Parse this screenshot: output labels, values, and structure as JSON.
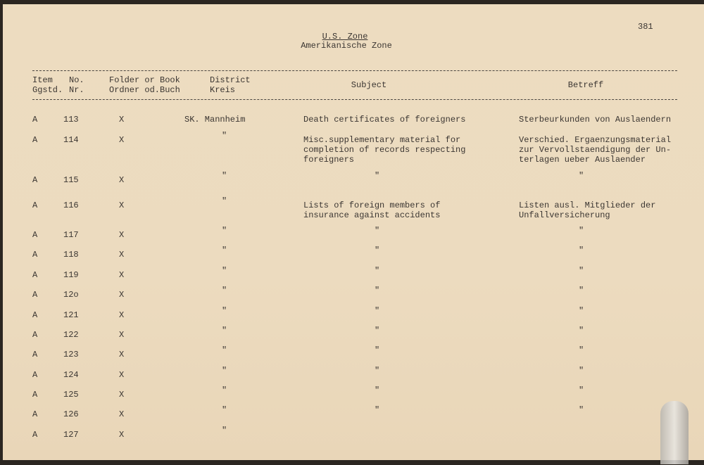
{
  "page_number": "381",
  "heading": {
    "line1": "U.S. Zone",
    "line2": "Amerikanische Zone"
  },
  "columns": {
    "item": [
      "Item",
      "Ggstd."
    ],
    "no": [
      "No.",
      "Nr."
    ],
    "folder": [
      "Folder or Book",
      "Ordner od.Buch"
    ],
    "district": [
      "District",
      "Kreis"
    ],
    "subject": "Subject",
    "betreff": "Betreff"
  },
  "rows": [
    {
      "item": "A",
      "no": "113",
      "folder": "X",
      "district": "SK. Mannheim",
      "subject": "Death certificates of foreigners",
      "betreff": "Sterbeurkunden von Auslaendern"
    },
    {
      "item": "A",
      "no": "114",
      "folder": "X",
      "district": "\"",
      "subject": "Misc.supplementary material for\ncompletion of records respecting\nforeigners",
      "betreff": "Verschied. Ergaenzungsmaterial\nzur Vervollstaendigung der Un-\nterlagen ueber Auslaender"
    },
    {
      "item": "A",
      "no": "115",
      "folder": "X",
      "district": "\"",
      "subject": "\"",
      "betreff": "\""
    },
    {
      "item": "A",
      "no": "116",
      "folder": "X",
      "district": "\"",
      "subject": "Lists of foreign members of\ninsurance against accidents",
      "betreff": "Listen ausl. Mitglieder der\nUnfallversicherung"
    },
    {
      "item": "A",
      "no": "117",
      "folder": "X",
      "district": "\"",
      "subject": "\"",
      "betreff": "\""
    },
    {
      "item": "A",
      "no": "118",
      "folder": "X",
      "district": "\"",
      "subject": "\"",
      "betreff": "\""
    },
    {
      "item": "A",
      "no": "119",
      "folder": "X",
      "district": "\"",
      "subject": "\"",
      "betreff": "\""
    },
    {
      "item": "A",
      "no": "12o",
      "folder": "X",
      "district": "\"",
      "subject": "\"",
      "betreff": "\""
    },
    {
      "item": "A",
      "no": "121",
      "folder": "X",
      "district": "\"",
      "subject": "\"",
      "betreff": "\""
    },
    {
      "item": "A",
      "no": "122",
      "folder": "X",
      "district": "\"",
      "subject": "\"",
      "betreff": "\""
    },
    {
      "item": "A",
      "no": "123",
      "folder": "X",
      "district": "\"",
      "subject": "\"",
      "betreff": "\""
    },
    {
      "item": "A",
      "no": "124",
      "folder": "X",
      "district": "\"",
      "subject": "\"",
      "betreff": "\""
    },
    {
      "item": "A",
      "no": "125",
      "folder": "X",
      "district": "\"",
      "subject": "\"",
      "betreff": "\""
    },
    {
      "item": "A",
      "no": "126",
      "folder": "X",
      "district": "\"",
      "subject": "\"",
      "betreff": "\""
    },
    {
      "item": "A",
      "no": "127",
      "folder": "X",
      "district": "\"",
      "subject": "",
      "betreff": ""
    }
  ]
}
